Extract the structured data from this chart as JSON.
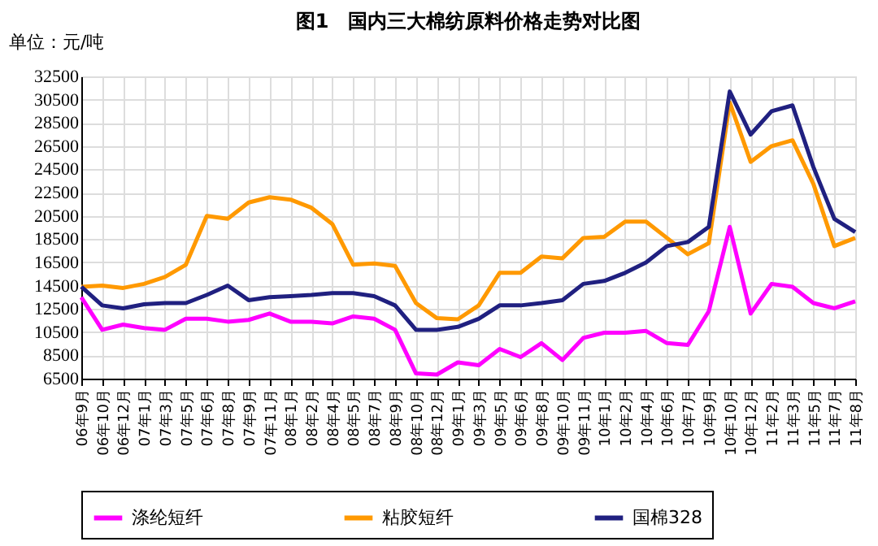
{
  "chart_data": {
    "type": "line",
    "title": "图1　国内三大棉纺原料价格走势对比图",
    "ylabel": "单位：元/吨",
    "categories": [
      "06年9月",
      "06年10月",
      "06年12月",
      "07年1月",
      "07年3月",
      "07年5月",
      "07年6月",
      "07年8月",
      "07年9月",
      "07年11月",
      "08年1月",
      "08年2月",
      "08年4月",
      "08年5月",
      "08年7月",
      "08年9月",
      "08年10月",
      "08年12月",
      "09年1月",
      "09年3月",
      "09年5月",
      "09年6月",
      "09年8月",
      "09年10月",
      "09年11月",
      "10年1月",
      "10年2月",
      "10年4月",
      "10年6月",
      "10年7月",
      "10年9月",
      "10年10月",
      "10年12月",
      "11年2月",
      "11年3月",
      "11年5月",
      "11年7月",
      "11年8月"
    ],
    "series": [
      {
        "name": "涤纶短纤",
        "color": "#ff00ff",
        "values": [
          13500,
          10700,
          11150,
          10850,
          10700,
          11650,
          11650,
          11400,
          11550,
          12100,
          11400,
          11400,
          11250,
          11850,
          11650,
          10700,
          6950,
          6850,
          7900,
          7650,
          9050,
          8350,
          9550,
          8100,
          10000,
          10450,
          10450,
          10600,
          9550,
          9400,
          12300,
          19550,
          12100,
          14650,
          14400,
          13000,
          12550,
          13150
        ]
      },
      {
        "name": "粘胶短纤",
        "color": "#ff9900",
        "values": [
          14400,
          14500,
          14300,
          14650,
          15250,
          16300,
          20500,
          20250,
          21650,
          22100,
          21900,
          21200,
          19800,
          16300,
          16400,
          16200,
          13000,
          11700,
          11600,
          12800,
          15600,
          15600,
          17000,
          16850,
          18600,
          18700,
          20000,
          20000,
          18600,
          17200,
          18150,
          30250,
          25150,
          26500,
          27000,
          23250,
          17900,
          18600
        ]
      },
      {
        "name": "国棉328",
        "color": "#202080",
        "values": [
          14400,
          12800,
          12550,
          12900,
          13000,
          13000,
          13700,
          14500,
          13250,
          13500,
          13600,
          13700,
          13850,
          13850,
          13600,
          12800,
          10700,
          10700,
          10950,
          11650,
          12800,
          12800,
          13000,
          13250,
          14650,
          14900,
          15600,
          16500,
          17900,
          18250,
          19550,
          31200,
          27500,
          29500,
          30000,
          24700,
          20250,
          19100
        ]
      }
    ],
    "ylim": [
      6500,
      32500
    ],
    "yticks": [
      6500,
      8500,
      10500,
      12500,
      14500,
      16500,
      18500,
      20500,
      22500,
      24500,
      26500,
      28500,
      30500,
      32500
    ],
    "grid": true,
    "legend": "bottom",
    "marker": "none",
    "line_style": "solid"
  }
}
